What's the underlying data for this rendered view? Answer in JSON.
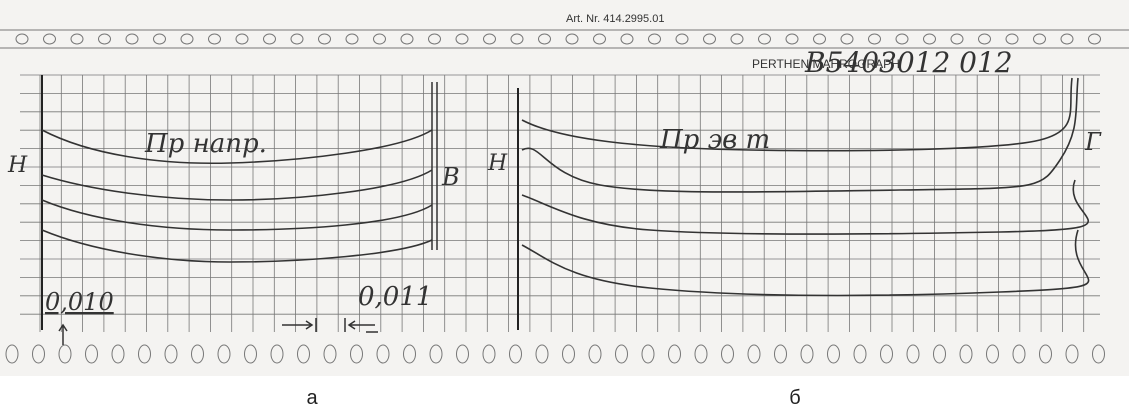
{
  "header": {
    "article": "Art. Nr. 414.2995.01",
    "brand": "PERTHEN MAHROGRAPH",
    "code": "B5403012 012"
  },
  "panels": [
    {
      "title": "Пр напр.",
      "left_label": "Н",
      "right_label": "В",
      "scale_label": "0,010",
      "scale_label_2": "0,011",
      "caption": "а"
    },
    {
      "title": "Пр эв т",
      "left_label": "Н",
      "right_label": "Г",
      "caption": "б"
    }
  ]
}
